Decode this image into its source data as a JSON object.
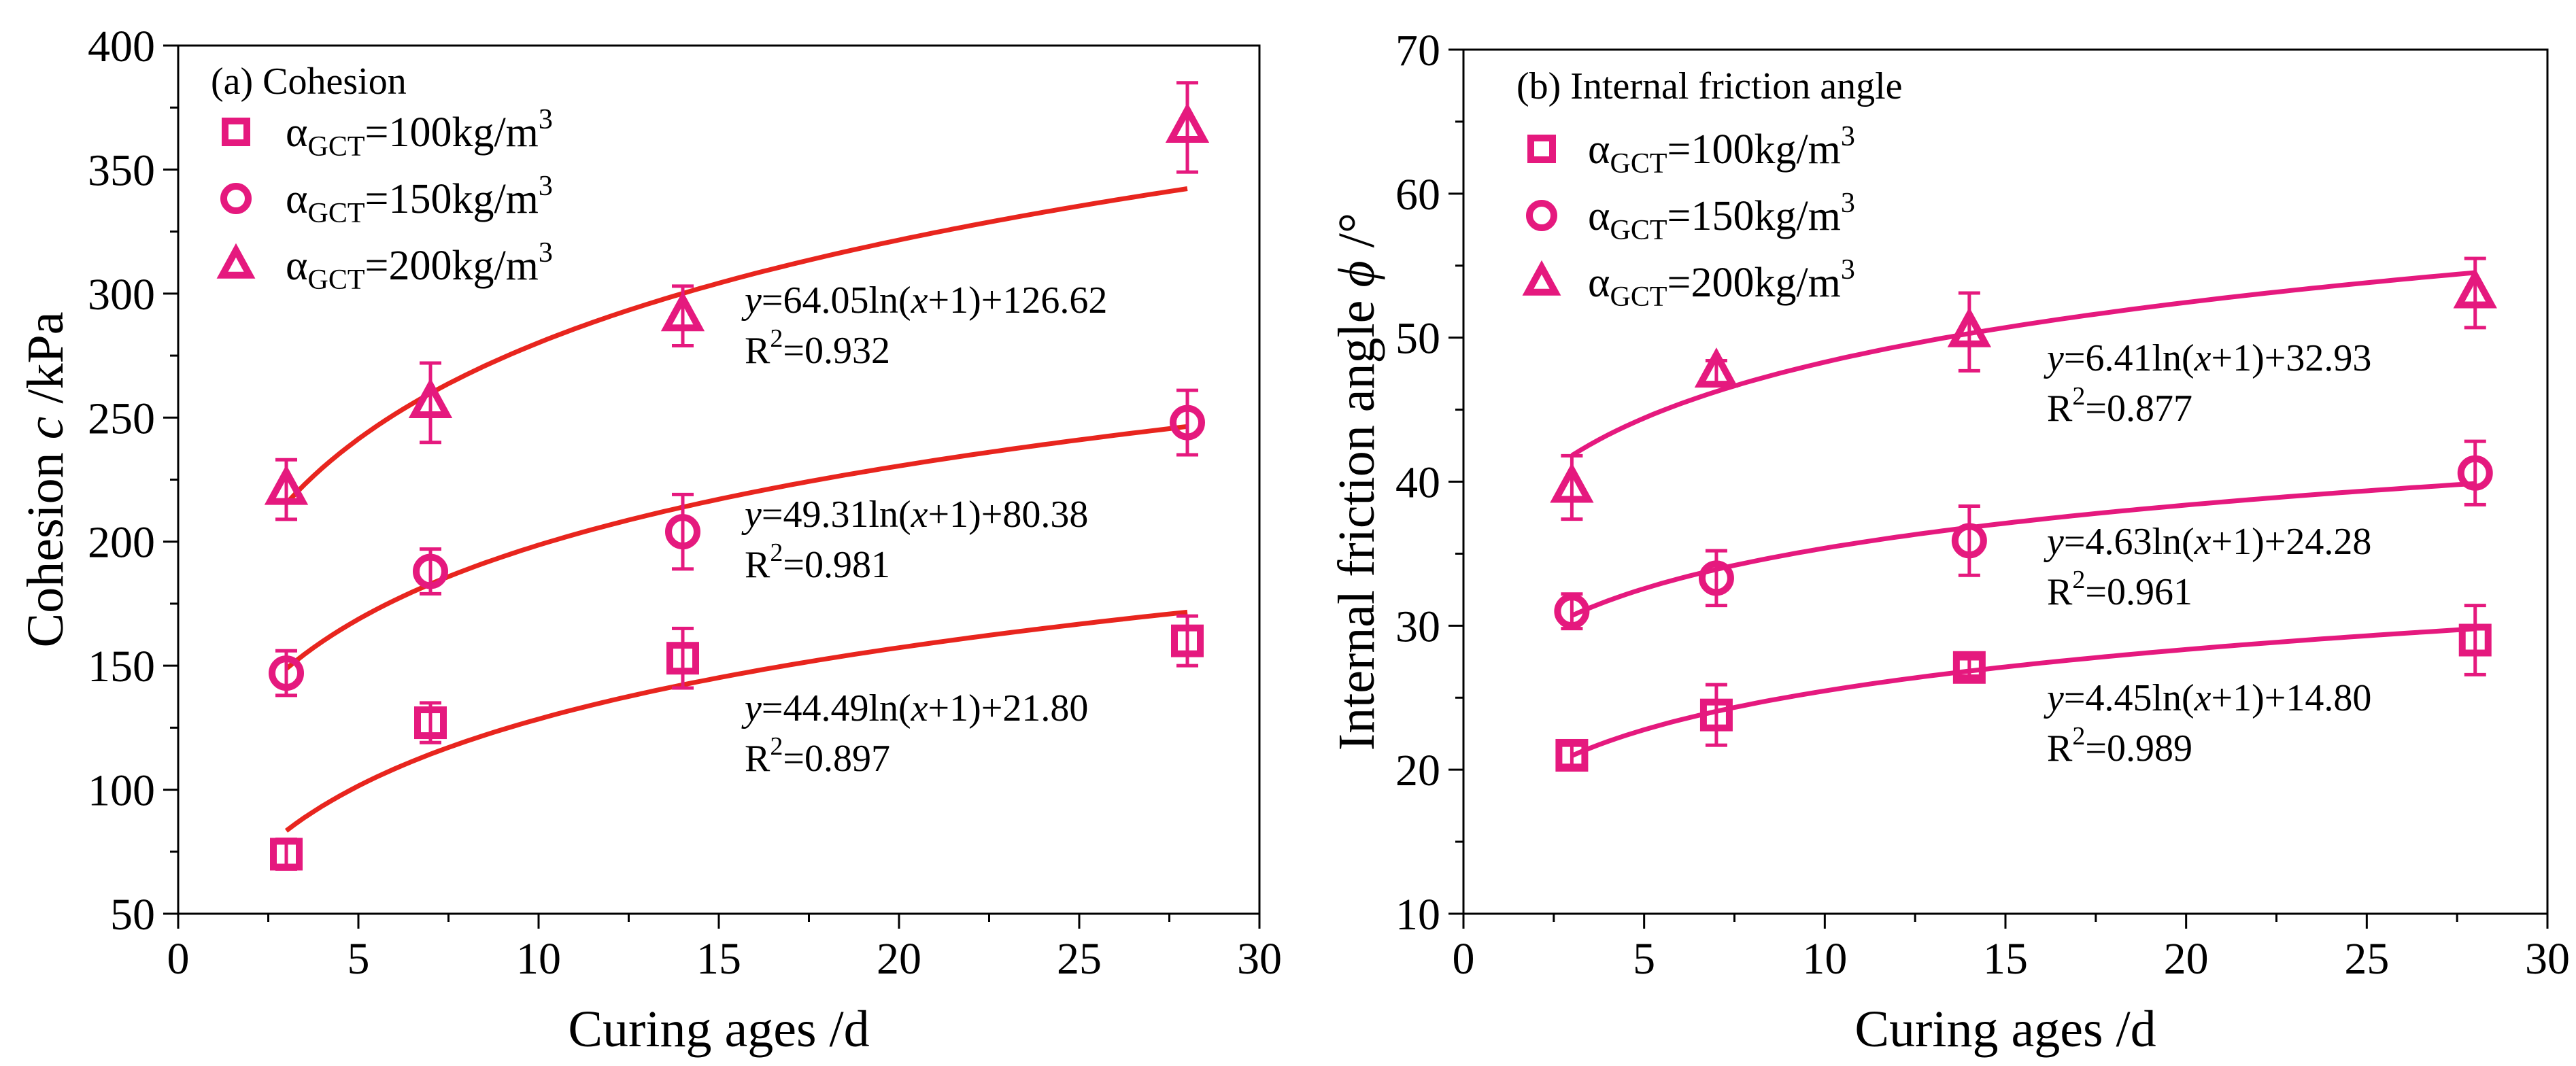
{
  "colors": {
    "fit_left": "#e8251e",
    "fit_right": "#e5197e",
    "marker": "#e5197e",
    "axis": "#000000"
  },
  "chart_data": [
    {
      "type": "scatter",
      "panel_title": "(a) Cohesion",
      "xlabel": "Curing ages /d",
      "ylabel_prefix": "Cohesion ",
      "ylabel_var": "c",
      "ylabel_suffix": " /kPa",
      "xlim": [
        0,
        30
      ],
      "ylim": [
        50,
        400
      ],
      "xticks": [
        0,
        5,
        10,
        15,
        20,
        25,
        30
      ],
      "yticks": [
        50,
        100,
        150,
        200,
        250,
        300,
        350,
        400
      ],
      "x": [
        3,
        7,
        14,
        28
      ],
      "series": [
        {
          "name": "αGCT=100kg/m3",
          "legend_base": "α",
          "legend_sub": "GCT",
          "legend_mid": "=100kg/m",
          "legend_sup": "3",
          "marker": "square",
          "values": [
            74,
            127,
            153,
            160
          ],
          "errors": [
            6,
            8,
            12,
            10
          ],
          "fit": {
            "a": 44.49,
            "b": 21.8,
            "line1_coef": "=44.49ln(",
            "line1_tail": "+1)+21.80",
            "r2_value": "=0.897"
          }
        },
        {
          "name": "αGCT=150kg/m3",
          "legend_base": "α",
          "legend_sub": "GCT",
          "legend_mid": "=150kg/m",
          "legend_sup": "3",
          "marker": "circle",
          "values": [
            147,
            188,
            204,
            248
          ],
          "errors": [
            9,
            9,
            15,
            13
          ],
          "fit": {
            "a": 49.31,
            "b": 80.38,
            "line1_coef": "=49.31ln(",
            "line1_tail": "+1)+80.38",
            "r2_value": "=0.981"
          }
        },
        {
          "name": "αGCT=200kg/m3",
          "legend_base": "α",
          "legend_sub": "GCT",
          "legend_mid": "=200kg/m",
          "legend_sup": "3",
          "marker": "triangle",
          "values": [
            221,
            256,
            291,
            367
          ],
          "errors": [
            12,
            16,
            12,
            18
          ],
          "fit": {
            "a": 64.05,
            "b": 126.62,
            "line1_coef": "=64.05ln(",
            "line1_tail": "+1)+126.62",
            "r2_value": "=0.932"
          }
        }
      ]
    },
    {
      "type": "scatter",
      "panel_title": "(b) Internal friction angle",
      "xlabel": "Curing ages /d",
      "ylabel_prefix": "Internal friction angle  ",
      "ylabel_var": "ϕ",
      "ylabel_suffix": " /°",
      "xlim": [
        0,
        30
      ],
      "ylim": [
        10,
        70
      ],
      "xticks": [
        0,
        5,
        10,
        15,
        20,
        25,
        30
      ],
      "yticks": [
        10,
        20,
        30,
        40,
        50,
        60,
        70
      ],
      "x": [
        3,
        7,
        14,
        28
      ],
      "series": [
        {
          "name": "αGCT=100kg/m3",
          "legend_base": "α",
          "legend_sub": "GCT",
          "legend_mid": "=100kg/m",
          "legend_sup": "3",
          "marker": "square",
          "values": [
            21.0,
            23.8,
            27.1,
            29.0
          ],
          "errors": [
            0.7,
            2.1,
            0.6,
            2.4
          ],
          "fit": {
            "a": 4.45,
            "b": 14.8,
            "line1_coef": "=4.45ln(",
            "line1_tail": "+1)+14.80",
            "r2_value": "=0.989"
          }
        },
        {
          "name": "αGCT=150kg/m3",
          "legend_base": "α",
          "legend_sub": "GCT",
          "legend_mid": "=150kg/m",
          "legend_sup": "3",
          "marker": "circle",
          "values": [
            31.0,
            33.3,
            35.9,
            40.6
          ],
          "errors": [
            1.2,
            1.9,
            2.4,
            2.2
          ],
          "fit": {
            "a": 4.63,
            "b": 24.28,
            "line1_coef": "=4.63ln(",
            "line1_tail": "+1)+24.28",
            "r2_value": "=0.961"
          }
        },
        {
          "name": "αGCT=200kg/m3",
          "legend_base": "α",
          "legend_sub": "GCT",
          "legend_mid": "=200kg/m",
          "legend_sup": "3",
          "marker": "triangle",
          "values": [
            39.6,
            47.6,
            50.4,
            53.1
          ],
          "errors": [
            2.2,
            0.8,
            2.7,
            2.4
          ],
          "fit": {
            "a": 6.41,
            "b": 32.93,
            "line1_coef": "=6.41ln(",
            "line1_tail": "+1)+32.93",
            "r2_value": "=0.877"
          }
        }
      ]
    }
  ]
}
